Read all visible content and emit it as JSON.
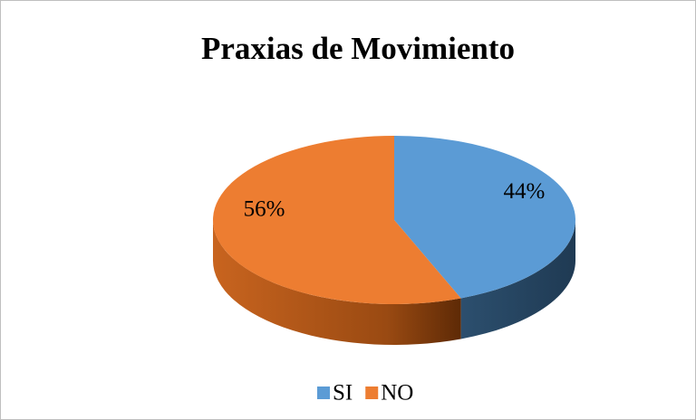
{
  "chart_data": {
    "type": "pie",
    "title": "Praxias de Movimiento",
    "categories": [
      "SI",
      "NO"
    ],
    "values": [
      44,
      56
    ],
    "value_labels": [
      "44%",
      "56%"
    ],
    "colors": [
      "#5b9bd5",
      "#ed7d31"
    ],
    "legend": "bottom"
  }
}
